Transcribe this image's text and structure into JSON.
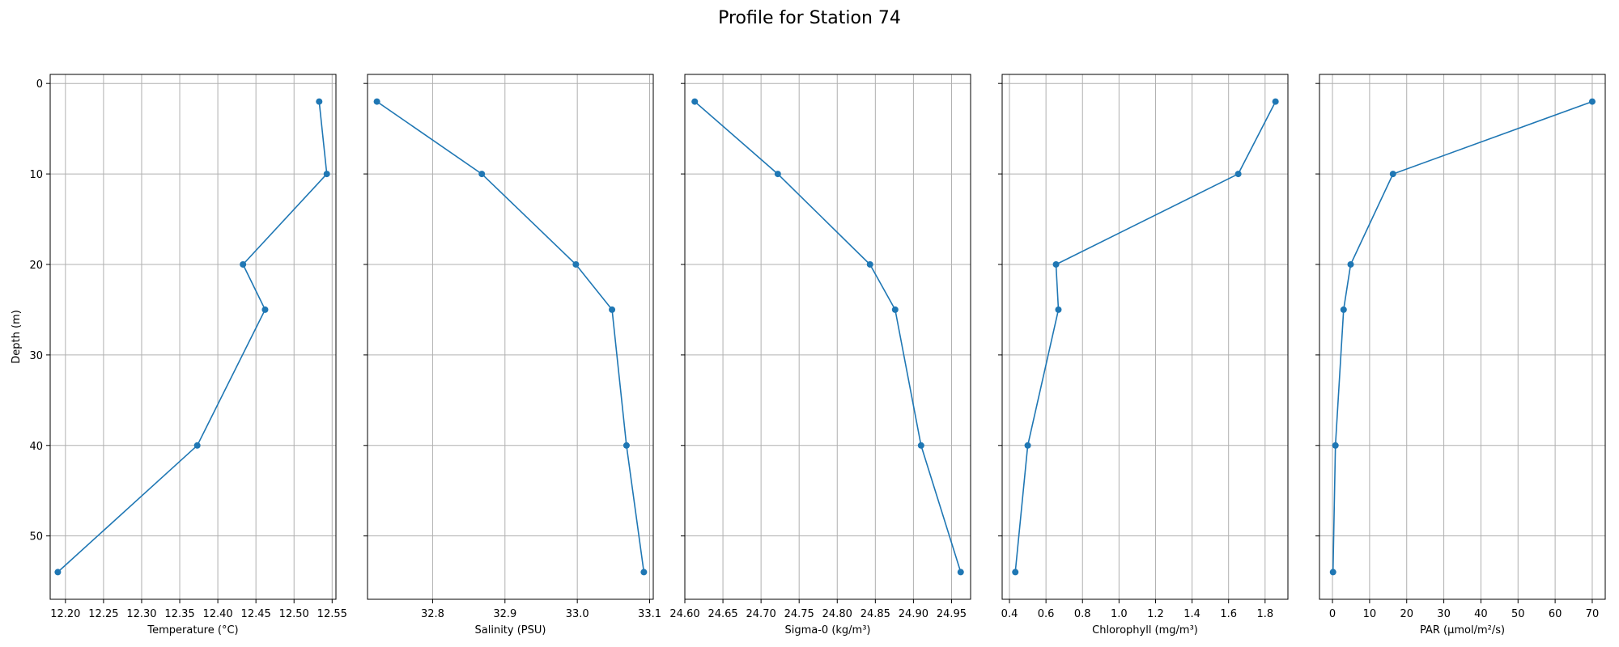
{
  "title": "Profile for Station 74",
  "shared_y": {
    "label": "Depth (m)",
    "inverted": true,
    "ylim": [
      57,
      -1
    ],
    "ticks": [
      0,
      10,
      20,
      30,
      40,
      50
    ]
  },
  "colors": {
    "series": "#1f77b4",
    "grid": "#b0b0b0",
    "axis": "#000000"
  },
  "chart_data": [
    {
      "type": "line",
      "xlabel": "Temperature (°C)",
      "ylabel": "Depth (m)",
      "xlim": [
        12.18,
        12.555
      ],
      "xticks": [
        12.2,
        12.25,
        12.3,
        12.35,
        12.4,
        12.45,
        12.5,
        12.55
      ],
      "xtick_labels": [
        "12.20",
        "12.25",
        "12.30",
        "12.35",
        "12.40",
        "12.45",
        "12.50",
        "12.55"
      ],
      "grid": true,
      "x": [
        12.533,
        12.543,
        12.433,
        12.462,
        12.373,
        12.19
      ],
      "y": [
        2,
        10,
        20,
        25,
        40,
        54
      ]
    },
    {
      "type": "line",
      "xlabel": "Salinity (PSU)",
      "ylabel": "Depth (m)",
      "xlim": [
        32.71,
        33.105
      ],
      "xticks": [
        32.8,
        32.9,
        33.0,
        33.1
      ],
      "xtick_labels": [
        "32.8",
        "32.9",
        "33.0",
        "33.1"
      ],
      "grid": true,
      "x": [
        32.723,
        32.868,
        32.998,
        33.048,
        33.068,
        33.092
      ],
      "y": [
        2,
        10,
        20,
        25,
        40,
        54
      ]
    },
    {
      "type": "line",
      "xlabel": "Sigma-0 (kg/m³)",
      "ylabel": "Depth (m)",
      "xlim": [
        24.6,
        24.975
      ],
      "xticks": [
        24.6,
        24.65,
        24.7,
        24.75,
        24.8,
        24.85,
        24.9,
        24.95
      ],
      "xtick_labels": [
        "24.60",
        "24.65",
        "24.70",
        "24.75",
        "24.80",
        "24.85",
        "24.90",
        "24.95"
      ],
      "grid": true,
      "x": [
        24.613,
        24.722,
        24.843,
        24.876,
        24.91,
        24.962
      ],
      "y": [
        2,
        10,
        20,
        25,
        40,
        54
      ]
    },
    {
      "type": "line",
      "xlabel": "Chlorophyll (mg/m³)",
      "ylabel": "Depth (m)",
      "xlim": [
        0.36,
        1.925
      ],
      "xticks": [
        0.4,
        0.6,
        0.8,
        1.0,
        1.2,
        1.4,
        1.6,
        1.8
      ],
      "xtick_labels": [
        "0.4",
        "0.6",
        "0.8",
        "1.0",
        "1.2",
        "1.4",
        "1.6",
        "1.8"
      ],
      "grid": true,
      "x": [
        1.857,
        1.653,
        0.655,
        0.668,
        0.5,
        0.432
      ],
      "y": [
        2,
        10,
        20,
        25,
        40,
        54
      ]
    },
    {
      "type": "line",
      "xlabel": "PAR (µmol/m²/s)",
      "ylabel": "Depth (m)",
      "xlim": [
        -3.5,
        73.5
      ],
      "xticks": [
        0,
        10,
        20,
        30,
        40,
        50,
        60,
        70
      ],
      "xtick_labels": [
        "0",
        "10",
        "20",
        "30",
        "40",
        "50",
        "60",
        "70"
      ],
      "grid": true,
      "x": [
        70.0,
        16.3,
        4.9,
        3.0,
        0.8,
        0.15
      ],
      "y": [
        2,
        10,
        20,
        25,
        40,
        54
      ]
    }
  ]
}
